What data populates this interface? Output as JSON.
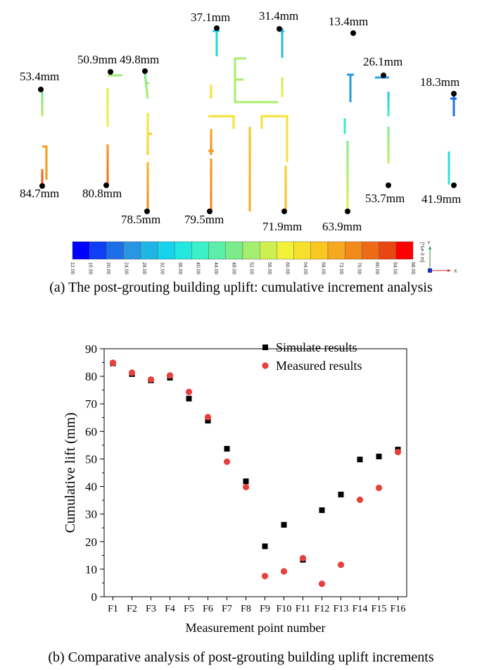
{
  "figure_a": {
    "caption": "(a) The post-grouting building uplift: cumulative increment analysis",
    "annotations": [
      "53.4mm",
      "50.9mm",
      "49.8mm",
      "37.1mm",
      "31.4mm",
      "13.4mm",
      "26.1mm",
      "18.3mm",
      "84.7mm",
      "80.8mm",
      "78.5mm",
      "79.5mm",
      "71.9mm",
      "63.9mm",
      "53.7mm",
      "41.9mm"
    ],
    "color_scale": {
      "ticks": [
        "12.00",
        "16.00",
        "20.00",
        "24.00",
        "28.00",
        "32.00",
        "36.00",
        "40.00",
        "44.00",
        "48.00",
        "52.00",
        "56.00",
        "60.00",
        "64.00",
        "68.00",
        "72.00",
        "76.00",
        "80.00",
        "84.00",
        "88.00"
      ],
      "colors": [
        "#0000ff",
        "#0f3ff5",
        "#1e6ee8",
        "#2a95e0",
        "#1fb6e6",
        "#16d2ea",
        "#22e8e0",
        "#3cf0c8",
        "#5aeea8",
        "#7cec8a",
        "#a4ee70",
        "#cdf050",
        "#f2f23a",
        "#f7e02b",
        "#f9c622",
        "#f6a81e",
        "#f28a1a",
        "#ee6a16",
        "#ea4612",
        "#ff0000"
      ],
      "unit_label": "[*1e-3 m]",
      "axis_y": "Y",
      "axis_x": "X"
    }
  },
  "chart_data": {
    "type": "scatter",
    "title": "",
    "xlabel": "Measurement point number",
    "ylabel": "Cumulative lift (mm)",
    "categories": [
      "F1",
      "F2",
      "F3",
      "F4",
      "F5",
      "F6",
      "F7",
      "F8",
      "F9",
      "F10",
      "F11",
      "F12",
      "F13",
      "F14",
      "F15",
      "F16"
    ],
    "ylim": [
      0,
      90
    ],
    "yticks": [
      0,
      10,
      20,
      30,
      40,
      50,
      60,
      70,
      80,
      90
    ],
    "legend_position": "top-right",
    "series": [
      {
        "name": "Simulate results",
        "marker": "square",
        "color": "#000000",
        "values": [
          84.7,
          80.8,
          78.5,
          79.5,
          71.9,
          63.9,
          53.7,
          41.9,
          18.3,
          26.1,
          13.4,
          31.4,
          37.1,
          49.8,
          50.9,
          53.4
        ]
      },
      {
        "name": "Measured results",
        "marker": "circle",
        "color": "#e8403c",
        "values": [
          84.9,
          81.3,
          78.8,
          80.3,
          74.3,
          65.2,
          49.0,
          39.8,
          7.5,
          9.2,
          14.0,
          4.7,
          11.6,
          35.2,
          39.5,
          52.5
        ]
      }
    ],
    "caption": "(b) Comparative analysis of post-grouting building uplift increments"
  }
}
